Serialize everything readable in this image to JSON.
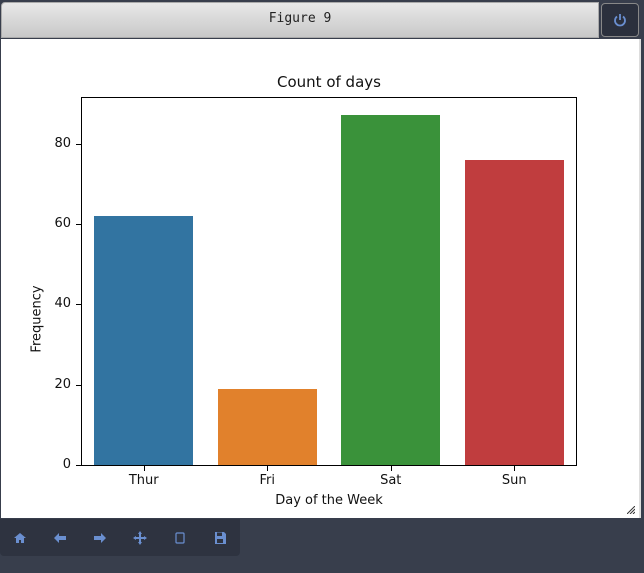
{
  "window": {
    "title": "Figure 9"
  },
  "toolbar": {
    "items": [
      {
        "name": "home",
        "icon": "home-icon"
      },
      {
        "name": "back",
        "icon": "arrow-left-icon"
      },
      {
        "name": "forward",
        "icon": "arrow-right-icon"
      },
      {
        "name": "pan",
        "icon": "move-icon"
      },
      {
        "name": "zoom",
        "icon": "zoom-rect-icon"
      },
      {
        "name": "save",
        "icon": "save-icon"
      }
    ]
  },
  "chart_data": {
    "type": "bar",
    "title": "Count of days",
    "xlabel": "Day of the Week",
    "ylabel": "Frequency",
    "categories": [
      "Thur",
      "Fri",
      "Sat",
      "Sun"
    ],
    "values": [
      62,
      19,
      87,
      76
    ],
    "colors": [
      "#3274a1",
      "#e1812c",
      "#3a923a",
      "#c03d3e"
    ],
    "yticks": [
      0,
      20,
      40,
      60,
      80
    ],
    "ylim": [
      0,
      91.35
    ],
    "grid": false
  }
}
